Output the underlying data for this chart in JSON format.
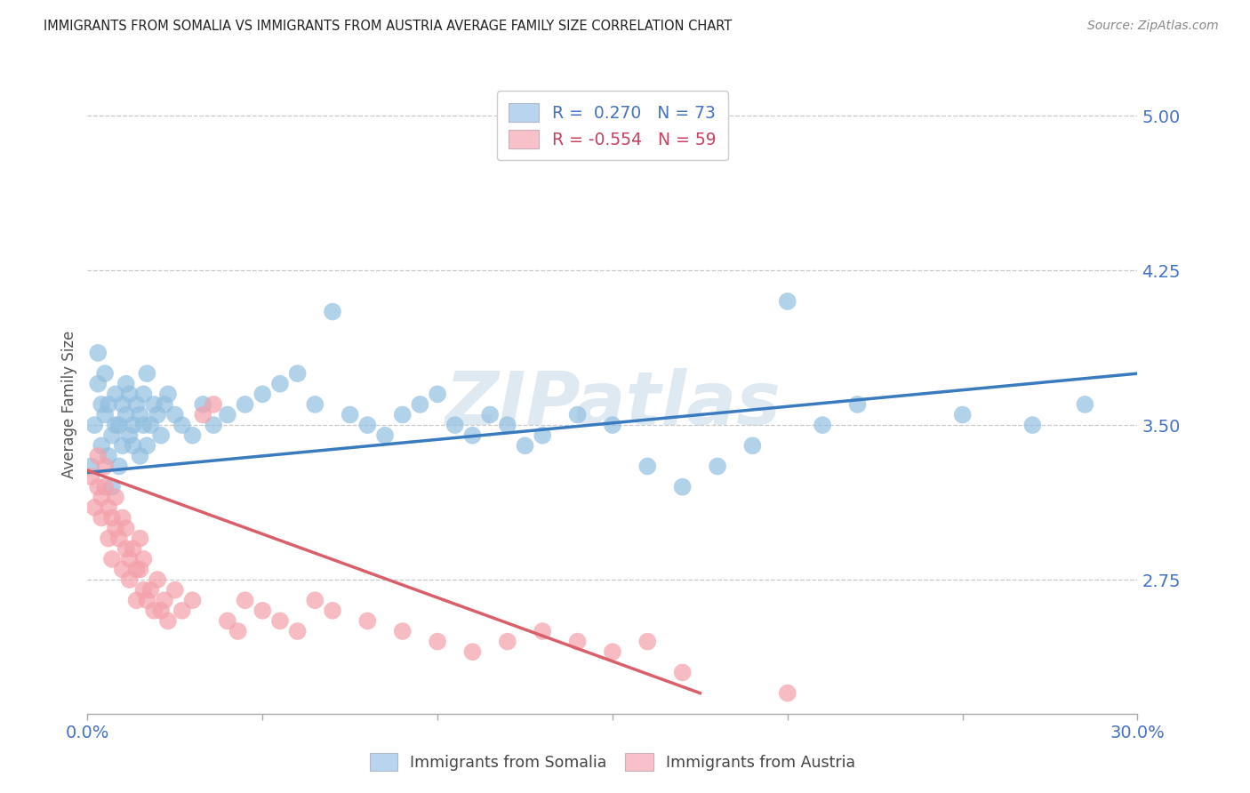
{
  "title": "IMMIGRANTS FROM SOMALIA VS IMMIGRANTS FROM AUSTRIA AVERAGE FAMILY SIZE CORRELATION CHART",
  "source": "Source: ZipAtlas.com",
  "ylabel": "Average Family Size",
  "xlim": [
    0.0,
    0.3
  ],
  "ylim": [
    2.1,
    5.1
  ],
  "yticks": [
    2.75,
    3.5,
    4.25,
    5.0
  ],
  "ytick_labels": [
    "2.75",
    "3.50",
    "4.25",
    "5.00"
  ],
  "xtick_positions": [
    0.0,
    0.05,
    0.1,
    0.15,
    0.2,
    0.25,
    0.3
  ],
  "somalia_R": 0.27,
  "somalia_N": 73,
  "austria_R": -0.554,
  "austria_N": 59,
  "somalia_color": "#92bfe0",
  "austria_color": "#f4a0aa",
  "somalia_line_color": "#3a7bbf",
  "austria_line_color": "#d9606a",
  "legend_somalia_face": "#b8d4ee",
  "legend_austria_face": "#f8c0c8",
  "watermark": "ZIPatlas",
  "background_color": "#ffffff",
  "title_color": "#222222",
  "axis_label_color": "#4472c4",
  "grid_color": "#c8c8c8",
  "somalia_line_x0": 0.0,
  "somalia_line_y0": 3.27,
  "somalia_line_x1": 0.3,
  "somalia_line_y1": 3.75,
  "austria_line_x0": 0.0,
  "austria_line_y0": 3.28,
  "austria_line_x1": 0.175,
  "austria_line_y1": 2.2,
  "somalia_x": [
    0.001,
    0.002,
    0.003,
    0.003,
    0.004,
    0.004,
    0.005,
    0.005,
    0.006,
    0.006,
    0.007,
    0.007,
    0.008,
    0.008,
    0.009,
    0.009,
    0.01,
    0.01,
    0.011,
    0.011,
    0.012,
    0.012,
    0.013,
    0.013,
    0.014,
    0.015,
    0.015,
    0.016,
    0.016,
    0.017,
    0.017,
    0.018,
    0.019,
    0.02,
    0.021,
    0.022,
    0.023,
    0.025,
    0.027,
    0.03,
    0.033,
    0.036,
    0.04,
    0.045,
    0.05,
    0.055,
    0.06,
    0.065,
    0.07,
    0.075,
    0.08,
    0.085,
    0.09,
    0.095,
    0.1,
    0.105,
    0.11,
    0.115,
    0.12,
    0.125,
    0.13,
    0.14,
    0.15,
    0.16,
    0.17,
    0.18,
    0.19,
    0.2,
    0.21,
    0.22,
    0.25,
    0.27,
    0.285
  ],
  "somalia_y": [
    3.3,
    3.5,
    3.7,
    3.85,
    3.6,
    3.4,
    3.55,
    3.75,
    3.35,
    3.6,
    3.2,
    3.45,
    3.5,
    3.65,
    3.3,
    3.5,
    3.4,
    3.6,
    3.55,
    3.7,
    3.45,
    3.65,
    3.5,
    3.4,
    3.6,
    3.55,
    3.35,
    3.5,
    3.65,
    3.4,
    3.75,
    3.5,
    3.6,
    3.55,
    3.45,
    3.6,
    3.65,
    3.55,
    3.5,
    3.45,
    3.6,
    3.5,
    3.55,
    3.6,
    3.65,
    3.7,
    3.75,
    3.6,
    4.05,
    3.55,
    3.5,
    3.45,
    3.55,
    3.6,
    3.65,
    3.5,
    3.45,
    3.55,
    3.5,
    3.4,
    3.45,
    3.55,
    3.5,
    3.3,
    3.2,
    3.3,
    3.4,
    4.1,
    3.5,
    3.6,
    3.55,
    3.5,
    3.6
  ],
  "austria_x": [
    0.001,
    0.002,
    0.003,
    0.003,
    0.004,
    0.004,
    0.005,
    0.005,
    0.006,
    0.006,
    0.007,
    0.007,
    0.008,
    0.008,
    0.009,
    0.01,
    0.01,
    0.011,
    0.011,
    0.012,
    0.012,
    0.013,
    0.014,
    0.014,
    0.015,
    0.015,
    0.016,
    0.016,
    0.017,
    0.018,
    0.019,
    0.02,
    0.021,
    0.022,
    0.023,
    0.025,
    0.027,
    0.03,
    0.033,
    0.036,
    0.04,
    0.043,
    0.045,
    0.05,
    0.055,
    0.06,
    0.065,
    0.07,
    0.08,
    0.09,
    0.1,
    0.11,
    0.12,
    0.13,
    0.14,
    0.15,
    0.16,
    0.17,
    0.2
  ],
  "austria_y": [
    3.25,
    3.1,
    3.2,
    3.35,
    3.15,
    3.05,
    3.2,
    3.3,
    3.1,
    2.95,
    3.05,
    2.85,
    3.0,
    3.15,
    2.95,
    3.05,
    2.8,
    2.9,
    3.0,
    2.85,
    2.75,
    2.9,
    2.8,
    2.65,
    2.8,
    2.95,
    2.7,
    2.85,
    2.65,
    2.7,
    2.6,
    2.75,
    2.6,
    2.65,
    2.55,
    2.7,
    2.6,
    2.65,
    3.55,
    3.6,
    2.55,
    2.5,
    2.65,
    2.6,
    2.55,
    2.5,
    2.65,
    2.6,
    2.55,
    2.5,
    2.45,
    2.4,
    2.45,
    2.5,
    2.45,
    2.4,
    2.45,
    2.3,
    2.2
  ]
}
